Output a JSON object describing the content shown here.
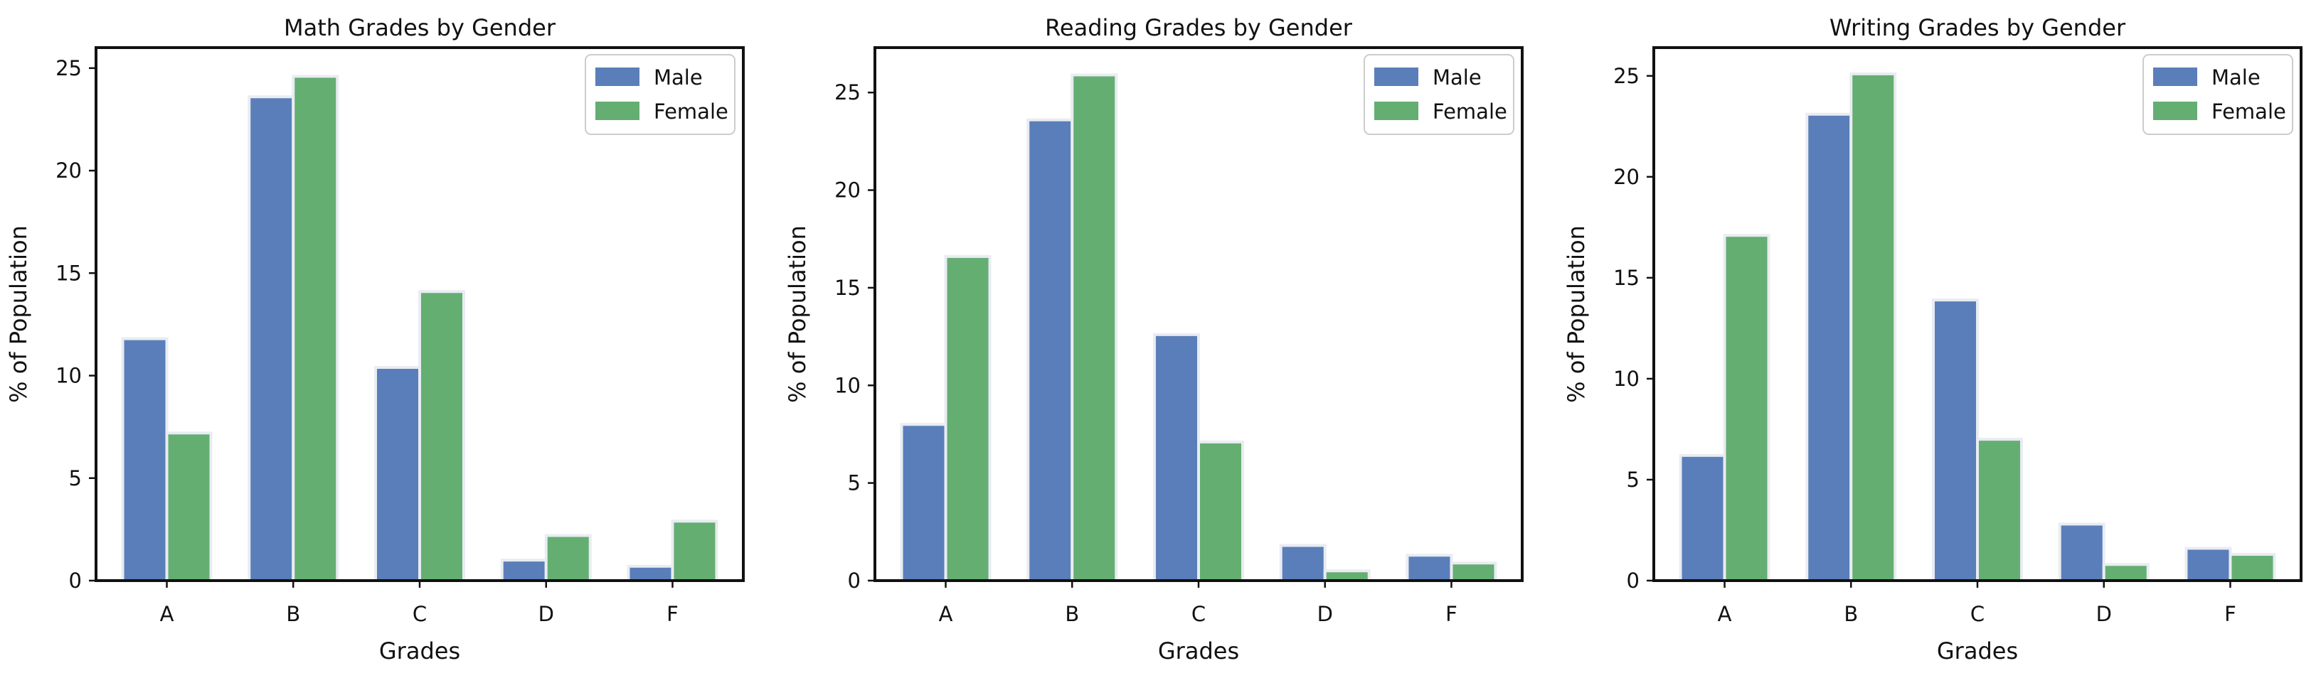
{
  "colors": {
    "male": "#5a7eb9",
    "female": "#64ae72"
  },
  "chart_data": [
    {
      "type": "bar",
      "title": "Math Grades by Gender",
      "xlabel": "Grades",
      "ylabel": "% of Population",
      "categories": [
        "A",
        "B",
        "C",
        "D",
        "F"
      ],
      "ylim": [
        0,
        26
      ],
      "yticks": [
        0,
        5,
        10,
        15,
        20,
        25
      ],
      "legend": "top-right",
      "grid": false,
      "series": [
        {
          "name": "Male",
          "values": [
            11.8,
            23.6,
            10.4,
            1.0,
            0.7
          ]
        },
        {
          "name": "Female",
          "values": [
            7.2,
            24.6,
            14.1,
            2.2,
            2.9
          ]
        }
      ]
    },
    {
      "type": "bar",
      "title": "Reading Grades by Gender",
      "xlabel": "Grades",
      "ylabel": "% of Population",
      "categories": [
        "A",
        "B",
        "C",
        "D",
        "F"
      ],
      "ylim": [
        0,
        27.3
      ],
      "yticks": [
        0,
        5,
        10,
        15,
        20,
        25
      ],
      "legend": "top-right",
      "grid": false,
      "series": [
        {
          "name": "Male",
          "values": [
            8.0,
            23.6,
            12.6,
            1.8,
            1.3
          ]
        },
        {
          "name": "Female",
          "values": [
            16.6,
            25.9,
            7.1,
            0.5,
            0.9
          ]
        }
      ]
    },
    {
      "type": "bar",
      "title": "Writing Grades by Gender",
      "xlabel": "Grades",
      "ylabel": "% of Population",
      "categories": [
        "A",
        "B",
        "C",
        "D",
        "F"
      ],
      "ylim": [
        0,
        26.4
      ],
      "yticks": [
        0,
        5,
        10,
        15,
        20,
        25
      ],
      "legend": "top-right",
      "grid": false,
      "series": [
        {
          "name": "Male",
          "values": [
            6.2,
            23.1,
            13.9,
            2.8,
            1.6
          ]
        },
        {
          "name": "Female",
          "values": [
            17.1,
            25.1,
            7.0,
            0.8,
            1.3
          ]
        }
      ]
    }
  ]
}
